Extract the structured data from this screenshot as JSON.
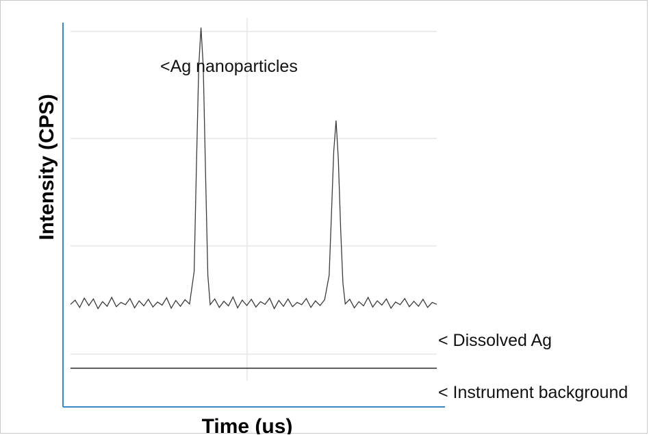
{
  "chart_data": {
    "type": "line",
    "title": "",
    "xlabel": "Time (us)",
    "ylabel": "Intensity (CPS)",
    "grid": true,
    "ylim": [
      0,
      100
    ],
    "series": [
      {
        "values": [
          [
            0,
            26.5
          ],
          [
            4,
            27.6
          ],
          [
            8,
            25.7
          ],
          [
            12,
            28.1
          ],
          [
            16,
            26.2
          ],
          [
            20,
            27.9
          ],
          [
            24,
            25.4
          ],
          [
            28,
            27.2
          ],
          [
            32,
            26.0
          ],
          [
            36,
            28.3
          ],
          [
            40,
            25.9
          ],
          [
            44,
            27.0
          ],
          [
            48,
            26.4
          ],
          [
            52,
            28.0
          ],
          [
            56,
            25.6
          ],
          [
            60,
            27.4
          ],
          [
            64,
            26.1
          ],
          [
            68,
            27.8
          ],
          [
            72,
            25.8
          ],
          [
            76,
            27.1
          ],
          [
            80,
            26.3
          ],
          [
            84,
            28.2
          ],
          [
            88,
            25.5
          ],
          [
            92,
            27.5
          ],
          [
            96,
            26.0
          ],
          [
            100,
            27.7
          ],
          [
            104,
            26.6
          ],
          [
            108,
            35
          ],
          [
            110,
            62
          ],
          [
            112,
            88
          ],
          [
            114,
            98
          ],
          [
            116,
            88
          ],
          [
            118,
            60
          ],
          [
            120,
            34
          ],
          [
            122,
            26.4
          ],
          [
            126,
            27.9
          ],
          [
            130,
            25.7
          ],
          [
            134,
            27.3
          ],
          [
            138,
            26.1
          ],
          [
            142,
            28.4
          ],
          [
            146,
            25.6
          ],
          [
            150,
            27.6
          ],
          [
            154,
            26.2
          ],
          [
            158,
            27.8
          ],
          [
            162,
            25.8
          ],
          [
            166,
            27.2
          ],
          [
            170,
            26.5
          ],
          [
            174,
            28.1
          ],
          [
            178,
            25.4
          ],
          [
            182,
            27.5
          ],
          [
            186,
            26.0
          ],
          [
            190,
            27.9
          ],
          [
            194,
            25.9
          ],
          [
            198,
            27.0
          ],
          [
            202,
            26.4
          ],
          [
            206,
            28.0
          ],
          [
            210,
            25.7
          ],
          [
            214,
            27.4
          ],
          [
            218,
            26.2
          ],
          [
            222,
            27.7
          ],
          [
            226,
            34
          ],
          [
            228,
            50
          ],
          [
            230,
            66
          ],
          [
            232,
            74
          ],
          [
            234,
            64
          ],
          [
            236,
            46
          ],
          [
            238,
            32
          ],
          [
            240,
            26.6
          ],
          [
            244,
            27.8
          ],
          [
            248,
            25.6
          ],
          [
            252,
            27.2
          ],
          [
            256,
            26.1
          ],
          [
            260,
            28.3
          ],
          [
            264,
            25.8
          ],
          [
            268,
            27.4
          ],
          [
            272,
            26.3
          ],
          [
            276,
            27.9
          ],
          [
            280,
            25.5
          ],
          [
            284,
            27.1
          ],
          [
            288,
            26.4
          ],
          [
            292,
            28.0
          ],
          [
            296,
            25.9
          ],
          [
            300,
            27.3
          ],
          [
            304,
            26.0
          ],
          [
            308,
            27.8
          ],
          [
            312,
            25.7
          ],
          [
            316,
            27.0
          ],
          [
            320,
            26.5
          ]
        ]
      },
      {
        "values": [
          [
            0,
            10
          ],
          [
            320,
            10
          ]
        ]
      }
    ],
    "annotations": [
      {
        "text": "<Ag nanoparticles"
      },
      {
        "text": "< Dissolved Ag"
      },
      {
        "text": "< Instrument background"
      }
    ]
  }
}
